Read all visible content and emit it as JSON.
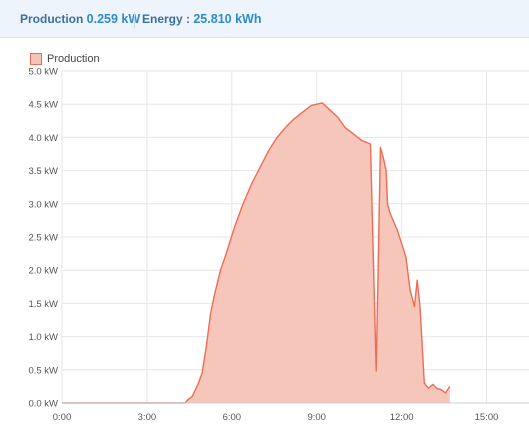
{
  "stats": {
    "production_label": "Production",
    "production_value": "0.259 kW",
    "energy_label": "Energy :",
    "energy_value": "25.810 kWh"
  },
  "colors": {
    "line": "#ed6c55",
    "fill": "#f7c3b6",
    "grid": "#e6e6e6",
    "accent": "#2f8bd0"
  },
  "chart_data": {
    "type": "area",
    "legend": [
      "Production"
    ],
    "legend_position": "top-left",
    "grid": true,
    "ylim": [
      0,
      5
    ],
    "xlim": [
      0,
      16.5
    ],
    "y_ticks": [
      "0.0 kW",
      "0.5 kW",
      "1.0 kW",
      "1.5 kW",
      "2.0 kW",
      "2.5 kW",
      "3.0 kW",
      "3.5 kW",
      "4.0 kW",
      "4.5 kW",
      "5.0 kW"
    ],
    "x_ticks": [
      "0:00",
      "3:00",
      "6:00",
      "9:00",
      "12:00",
      "15:00"
    ],
    "x_tick_hours": [
      0,
      3,
      6,
      9,
      12,
      15
    ],
    "series": [
      {
        "name": "Production",
        "x": [
          0,
          4.35,
          4.45,
          4.6,
          4.8,
          4.95,
          5.1,
          5.25,
          5.4,
          5.6,
          5.8,
          6.1,
          6.4,
          6.7,
          7.0,
          7.3,
          7.6,
          7.9,
          8.2,
          8.5,
          8.8,
          9.0,
          9.2,
          9.5,
          9.75,
          10.0,
          10.3,
          10.6,
          10.9,
          11.1,
          11.25,
          11.35,
          11.45,
          11.5,
          11.6,
          11.7,
          11.85,
          12.0,
          12.15,
          12.3,
          12.45,
          12.55,
          12.65,
          12.8,
          12.95,
          13.1,
          13.25,
          13.4,
          13.55,
          13.7
        ],
        "y": [
          0.0,
          0.0,
          0.05,
          0.1,
          0.28,
          0.45,
          0.85,
          1.35,
          1.65,
          2.0,
          2.25,
          2.65,
          3.0,
          3.3,
          3.55,
          3.8,
          4.0,
          4.15,
          4.28,
          4.38,
          4.48,
          4.5,
          4.52,
          4.4,
          4.3,
          4.15,
          4.05,
          3.95,
          3.9,
          0.48,
          3.85,
          3.7,
          3.5,
          3.0,
          2.85,
          2.75,
          2.6,
          2.4,
          2.2,
          1.7,
          1.45,
          1.85,
          1.45,
          0.3,
          0.22,
          0.28,
          0.22,
          0.2,
          0.15,
          0.25
        ]
      }
    ]
  }
}
